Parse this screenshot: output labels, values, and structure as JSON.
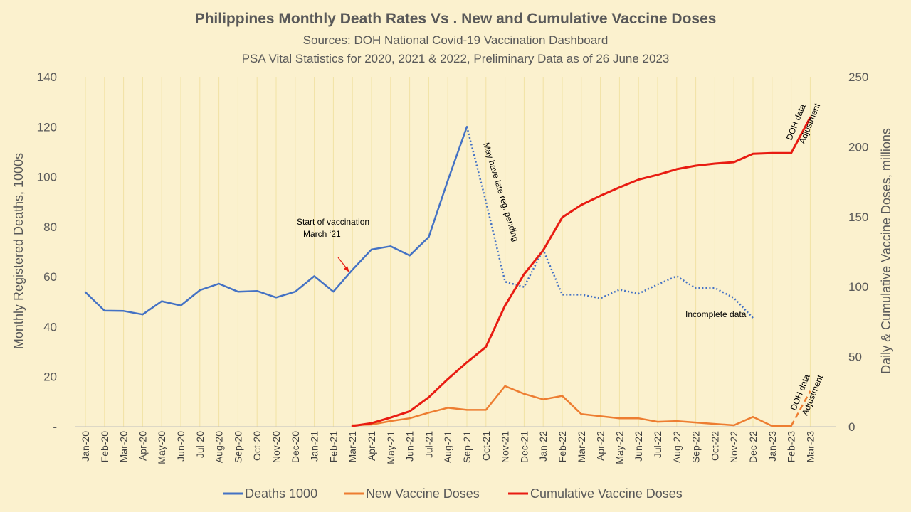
{
  "chart_data": {
    "type": "line",
    "title": "Philippines Monthly Death Rates Vs . New and Cumulative Vaccine Doses",
    "subtitle_1": "Sources: DOH National Covid-19 Vaccination Dashboard",
    "subtitle_2": "PSA Vital Statistics for 2020, 2021 & 2022, Preliminary Data as of 26 June 2023",
    "ylabel_left": "Monthly Registered  Deaths, 1000s",
    "ylabel_right": "Daily & Cumulative Vaccine Doses, millions",
    "ylim_left": [
      0,
      140
    ],
    "ylim_right": [
      0,
      250
    ],
    "yticks_left": [
      "140",
      "120",
      "100",
      "80",
      "60",
      "40",
      "20",
      "-"
    ],
    "yticks_right": [
      "250",
      "200",
      "150",
      "100",
      "50",
      "0"
    ],
    "yticks_left_values": [
      140,
      120,
      100,
      80,
      60,
      40,
      20,
      0
    ],
    "yticks_right_values": [
      250,
      200,
      150,
      100,
      50,
      0
    ],
    "grid": "vertical",
    "legend_position": "bottom",
    "categories": [
      "Jan-20",
      "Feb-20",
      "Mar-20",
      "Apr-20",
      "May-20",
      "Jun-20",
      "Jul-20",
      "Aug-20",
      "Sep-20",
      "Oct-20",
      "Nov-20",
      "Dec-20",
      "Jan-21",
      "Feb-21",
      "Mar-21",
      "Apr-21",
      "May-21",
      "Jun-21",
      "Jul-21",
      "Aug-21",
      "Sep-21",
      "Oct-21",
      "Nov-21",
      "Dec-21",
      "Jan-22",
      "Feb-22",
      "Mar-22",
      "Apr-22",
      "May-22",
      "Jun-22",
      "Jul-22",
      "Aug-22",
      "Sep-22",
      "Oct-22",
      "Nov-22",
      "Dec-22",
      "Jan-23",
      "Feb-23",
      "Mar-23"
    ],
    "series": [
      {
        "name": "Deaths 1000",
        "axis": "left",
        "color": "#4472C4",
        "values": [
          53.8,
          46.4,
          46.3,
          44.9,
          50.2,
          48.5,
          54.6,
          57.2,
          54.0,
          54.3,
          51.7,
          54.0,
          60.2,
          54.0,
          62.8,
          70.9,
          72.2,
          68.5,
          75.9,
          98.5,
          120.0,
          null,
          null,
          null,
          null,
          null,
          null,
          null,
          null,
          null,
          null,
          null,
          null,
          null,
          null,
          null,
          null,
          null,
          null
        ]
      },
      {
        "name": "Deaths 1000 (incomplete)",
        "axis": "left",
        "color": "#4472C4",
        "dashed": true,
        "values": [
          null,
          null,
          null,
          null,
          null,
          null,
          null,
          null,
          null,
          null,
          null,
          null,
          null,
          null,
          null,
          null,
          null,
          null,
          null,
          null,
          120.0,
          90.0,
          58.0,
          55.9,
          70.8,
          52.8,
          52.8,
          51.4,
          54.8,
          53.2,
          56.9,
          60.2,
          55.4,
          55.5,
          51.5,
          43.5,
          null,
          null,
          null
        ]
      },
      {
        "name": "New Vaccine Doses",
        "axis": "right",
        "color": "#ED7D31",
        "values": [
          null,
          null,
          null,
          null,
          null,
          null,
          null,
          null,
          null,
          null,
          null,
          null,
          null,
          null,
          1.0,
          1.5,
          4.0,
          6.0,
          10.0,
          13.5,
          12.0,
          12.0,
          29.0,
          23.5,
          19.5,
          22.0,
          9.0,
          7.5,
          6.0,
          6.0,
          3.5,
          4.0,
          3.0,
          2.0,
          1.0,
          7.0,
          0.5,
          0.5,
          null
        ]
      },
      {
        "name": "New Vaccine Doses (adjustment)",
        "axis": "right",
        "color": "#ED7D31",
        "dashed": true,
        "values": [
          null,
          null,
          null,
          null,
          null,
          null,
          null,
          null,
          null,
          null,
          null,
          null,
          null,
          null,
          null,
          null,
          null,
          null,
          null,
          null,
          null,
          null,
          null,
          null,
          null,
          null,
          null,
          null,
          null,
          null,
          null,
          null,
          null,
          null,
          null,
          null,
          null,
          0.5,
          25.5
        ]
      },
      {
        "name": "Cumulative Vaccine Doses",
        "axis": "right",
        "color": "#E81C12",
        "values": [
          null,
          null,
          null,
          null,
          null,
          null,
          null,
          null,
          null,
          null,
          null,
          null,
          null,
          null,
          0.5,
          2.5,
          6.5,
          11.0,
          21.0,
          34.0,
          46.0,
          57.0,
          86.5,
          109.0,
          126.0,
          149.5,
          158.5,
          165.0,
          171.0,
          176.5,
          180.0,
          184.0,
          186.5,
          188.0,
          189.0,
          195.0,
          195.5,
          195.5,
          221.0
        ]
      }
    ],
    "annotations": {
      "start_vacc_1": "Start of vaccination",
      "start_vacc_2": "March ‘21",
      "late_reg": "May have late reg. pending",
      "incomplete": "Incomplete data",
      "doh_top_1": "DOH data",
      "doh_top_2": "Adjustment",
      "doh_bottom_1": "DOH data",
      "doh_bottom_2": "Adjustment"
    },
    "legend": [
      {
        "label": "Deaths 1000",
        "color": "#4472C4"
      },
      {
        "label": "New Vaccine Doses",
        "color": "#ED7D31"
      },
      {
        "label": "Cumulative Vaccine Doses",
        "color": "#E81C12"
      }
    ],
    "annotation_arrow_color": "#E81C12"
  }
}
